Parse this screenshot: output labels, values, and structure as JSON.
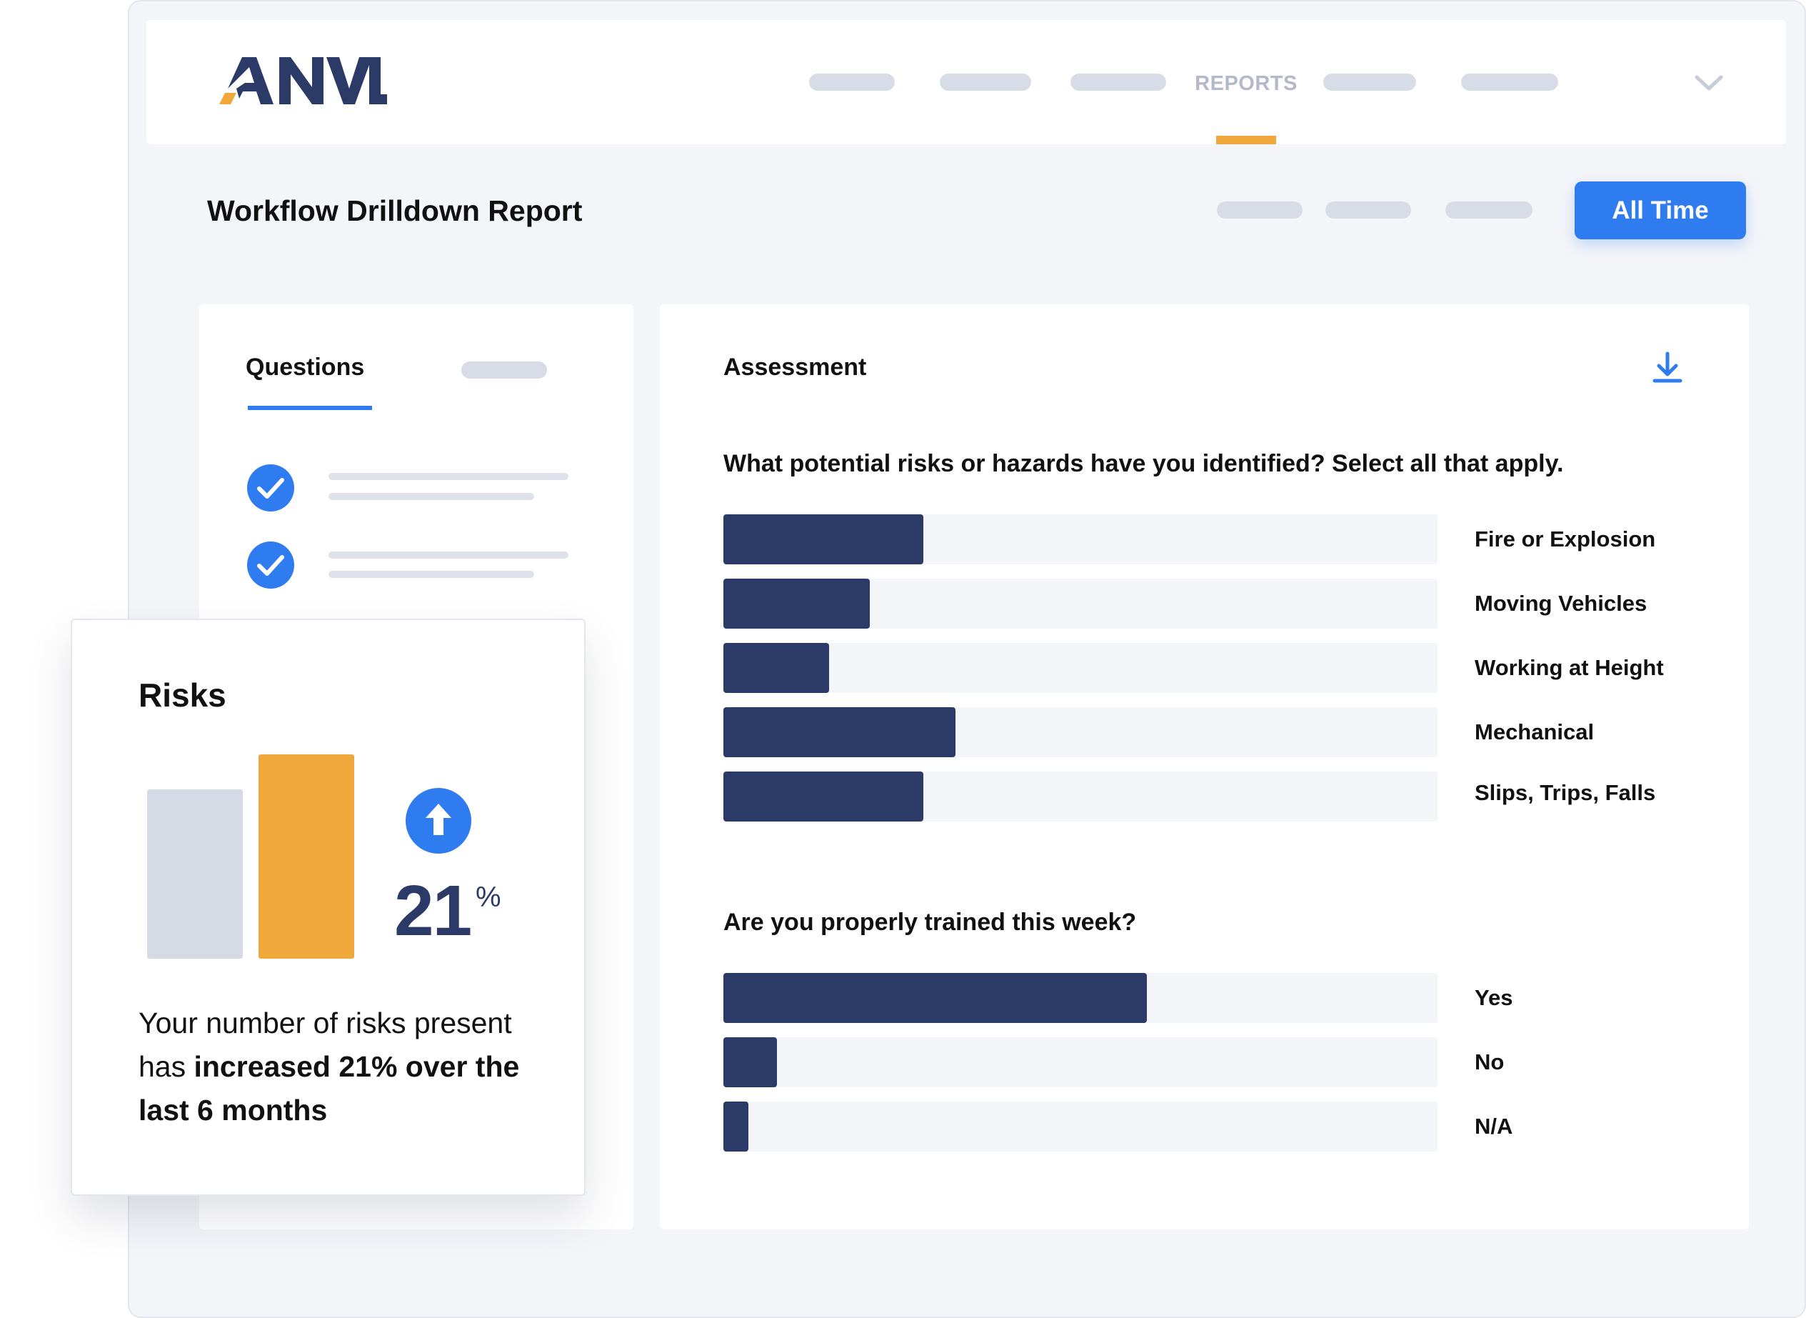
{
  "nav": {
    "logo_text": "ANVL",
    "active_item": "REPORTS"
  },
  "header": {
    "title": "Workflow Drilldown Report",
    "time_filter_button": "All Time"
  },
  "questions_panel": {
    "tab_label": "Questions"
  },
  "assessment": {
    "title": "Assessment",
    "questions": [
      {
        "text": "What potential risks or hazards have you identified? Select all that apply.",
        "options": [
          {
            "label": "Fire or Explosion",
            "share": 0.28
          },
          {
            "label": "Moving Vehicles",
            "share": 0.205
          },
          {
            "label": "Working at Height",
            "share": 0.148
          },
          {
            "label": "Mechanical",
            "share": 0.325
          },
          {
            "label": "Slips, Trips, Falls",
            "share": 0.28
          }
        ]
      },
      {
        "text": "Are you properly trained this week?",
        "options": [
          {
            "label": "Yes",
            "share": 0.593
          },
          {
            "label": "No",
            "share": 0.075
          },
          {
            "label": "N/A",
            "share": 0.035
          }
        ]
      }
    ]
  },
  "risks_card": {
    "title": "Risks",
    "change_value": "21",
    "change_unit": "%",
    "description_plain_1": "Your number of risks present",
    "description_plain_2": "has ",
    "description_bold_1": "increased 21% over the",
    "description_bold_2": "last 6 months",
    "comparison": [
      {
        "period": "previous",
        "relative_level": 0.83
      },
      {
        "period": "current",
        "relative_level": 1.0
      }
    ]
  },
  "colors": {
    "primary_blue": "#2f7bf0",
    "bar_navy": "#2c3a68",
    "accent_orange": "#f0a73c",
    "muted_gray": "#d5dae4"
  }
}
